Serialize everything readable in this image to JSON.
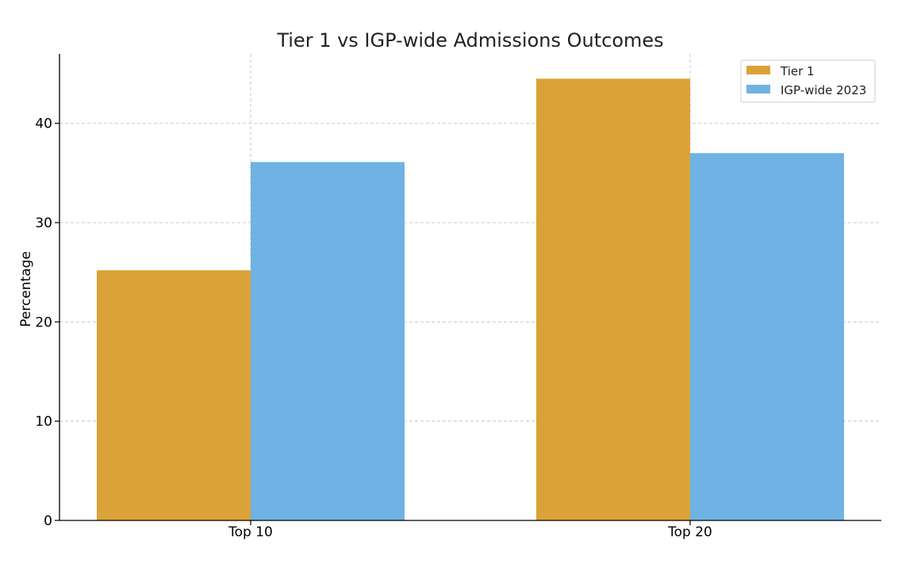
{
  "chart_data": {
    "type": "bar",
    "title": "Tier 1 vs IGP-wide Admissions Outcomes",
    "xlabel": "",
    "ylabel": "Percentage",
    "categories": [
      "Top 10",
      "Top 20"
    ],
    "series": [
      {
        "name": "Tier 1",
        "values": [
          25.2,
          44.5
        ],
        "color": "#DBA237"
      },
      {
        "name": "IGP-wide 2023",
        "values": [
          36.1,
          37.0
        ],
        "color": "#6FB2E3"
      }
    ],
    "ylim": [
      0,
      47
    ],
    "yticks": [
      0,
      10,
      20,
      30,
      40
    ],
    "grid": true,
    "legend_position": "top-right"
  }
}
